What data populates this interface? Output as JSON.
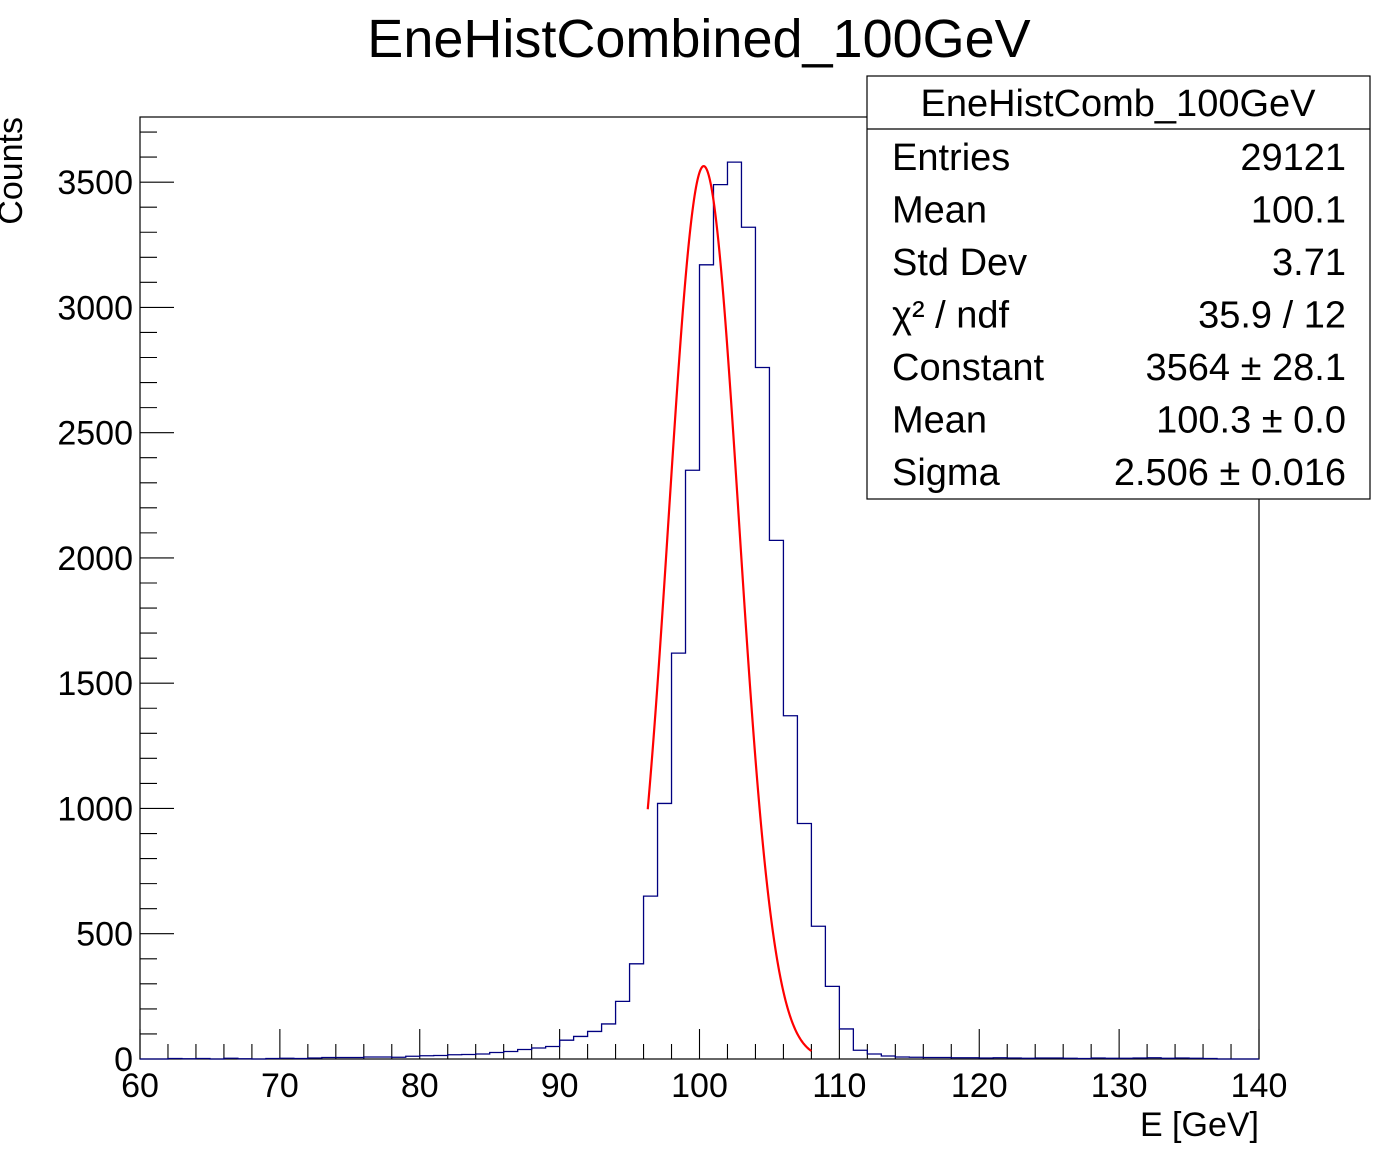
{
  "colors": {
    "histogram": "#000080",
    "fit": "#ff0000",
    "axis": "#000000",
    "background": "#ffffff"
  },
  "stats_box": {
    "title": "EneHistComb_100GeV",
    "rows": [
      {
        "label": "Entries",
        "value": "29121"
      },
      {
        "label": "Mean",
        "value": "100.1"
      },
      {
        "label": "Std Dev",
        "value": "3.71"
      },
      {
        "label": "χ² / ndf",
        "value": "35.9 / 12"
      },
      {
        "label": "Constant",
        "value": "3564 ± 28.1"
      },
      {
        "label": "Mean",
        "value": "100.3 ± 0.0"
      },
      {
        "label": "Sigma",
        "value": "2.506 ± 0.016"
      }
    ]
  },
  "chart_data": {
    "type": "histogram",
    "title": "EneHistCombined_100GeV",
    "xlabel": "E [GeV]",
    "ylabel": "Counts",
    "xlim": [
      60,
      140
    ],
    "ylim": [
      0,
      3760
    ],
    "x_ticks": [
      "60",
      "70",
      "80",
      "90",
      "100",
      "110",
      "120",
      "130",
      "140"
    ],
    "y_ticks": [
      "0",
      "500",
      "1000",
      "1500",
      "2000",
      "2500",
      "3000",
      "3500"
    ],
    "bin_width": 1,
    "bin_edges_start": 60,
    "counts": [
      0,
      0,
      2,
      1,
      2,
      0,
      3,
      1,
      0,
      2,
      3,
      2,
      4,
      6,
      6,
      6,
      8,
      8,
      7,
      11,
      13,
      14,
      17,
      18,
      20,
      26,
      30,
      38,
      44,
      50,
      75,
      90,
      110,
      140,
      230,
      380,
      650,
      1020,
      1620,
      2350,
      3170,
      3490,
      3580,
      3320,
      2760,
      2070,
      1370,
      940,
      530,
      290,
      120,
      35,
      20,
      12,
      8,
      7,
      6,
      6,
      5,
      5,
      4,
      5,
      4,
      3,
      4,
      4,
      3,
      2,
      4,
      3,
      3,
      4,
      5,
      3,
      4,
      3,
      2,
      0,
      0,
      0
    ],
    "fit": {
      "function": "gaus",
      "constant": 3564,
      "mean": 100.3,
      "sigma": 2.506,
      "range": [
        96.3,
        108
      ]
    }
  }
}
